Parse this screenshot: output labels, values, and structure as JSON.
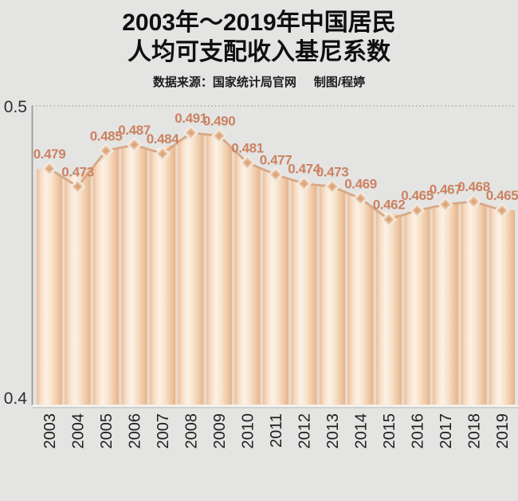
{
  "header": {
    "title_line1": "2003年～2019年中国居民",
    "title_line2": "人均可支配收入基尼系数",
    "subtitle_source": "数据来源：国家统计局官网",
    "subtitle_credit": "制图/程婷"
  },
  "chart_data": {
    "type": "bar",
    "title": "2003年～2019年中国居民人均可支配收入基尼系数",
    "categories": [
      "2003",
      "2004",
      "2005",
      "2006",
      "2007",
      "2008",
      "2009",
      "2010",
      "2011",
      "2012",
      "2013",
      "2014",
      "2015",
      "2016",
      "2017",
      "2018",
      "2019"
    ],
    "values": [
      0.479,
      0.473,
      0.485,
      0.487,
      0.484,
      0.491,
      0.49,
      0.481,
      0.477,
      0.474,
      0.473,
      0.469,
      0.462,
      0.465,
      0.467,
      0.468,
      0.465
    ],
    "xlabel": "",
    "ylabel": "",
    "ylim": [
      0.4,
      0.5
    ],
    "ytick_top": "0.5",
    "ytick_bottom": "0.4",
    "grid": "dotted top gridline at 0.5 only",
    "legend_position": "none",
    "colors": {
      "background": "#e4e4e3",
      "area_fill": "#eadaca",
      "bar_gradient": [
        "#ecbf9d",
        "#f7e0c8",
        "#fdf1e6",
        "#f7e2ca",
        "#eec6a2",
        "#e5b48e"
      ],
      "line": "#d9a885",
      "marker_fill": "#ebc3a2",
      "marker_inner": "#d8a278",
      "marker_stroke": "#f2ebe1",
      "value_label": "#cb8260",
      "axis": "#9b9b9b",
      "gridline": "#a3a3a3",
      "tick_text": "#2e2e2e"
    }
  }
}
